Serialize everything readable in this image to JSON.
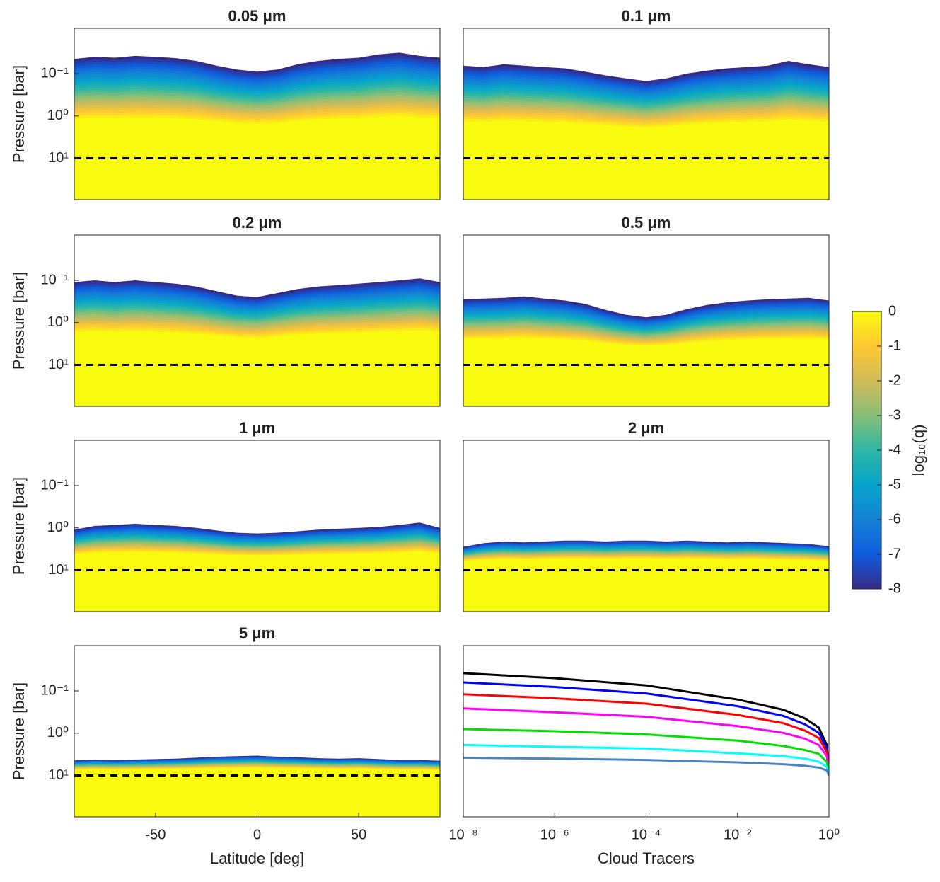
{
  "chart_data": [
    {
      "type": "heatmap",
      "title": "0.05 μm",
      "ylabel": "Pressure [bar]",
      "x": [
        -90,
        -80,
        -70,
        -60,
        -50,
        -40,
        -30,
        -20,
        -10,
        0,
        10,
        20,
        30,
        40,
        50,
        60,
        70,
        80,
        90
      ],
      "cloud_top": [
        0.045,
        0.04,
        0.042,
        0.038,
        0.04,
        0.043,
        0.05,
        0.065,
        0.08,
        0.09,
        0.08,
        0.06,
        0.05,
        0.045,
        0.042,
        0.035,
        0.032,
        0.038,
        0.042
      ],
      "xlim": [
        -90,
        90
      ],
      "ylim": [
        0.0085,
        95
      ],
      "log_y": true,
      "y_reversed": true,
      "reference_line": 10,
      "yticks": [
        {
          "value": 0.1,
          "label": "10⁻¹"
        },
        {
          "value": 1,
          "label": "10⁰"
        },
        {
          "value": 10,
          "label": "10¹"
        }
      ]
    },
    {
      "type": "heatmap",
      "title": "0.1 μm",
      "x": [
        -90,
        -80,
        -70,
        -60,
        -50,
        -40,
        -30,
        -20,
        -10,
        0,
        10,
        20,
        30,
        40,
        50,
        60,
        70,
        80,
        90
      ],
      "cloud_top": [
        0.065,
        0.07,
        0.06,
        0.065,
        0.07,
        0.075,
        0.09,
        0.11,
        0.13,
        0.15,
        0.13,
        0.1,
        0.085,
        0.075,
        0.07,
        0.065,
        0.05,
        0.06,
        0.07
      ],
      "xlim": [
        -90,
        90
      ],
      "ylim": [
        0.0085,
        95
      ],
      "log_y": true,
      "y_reversed": true,
      "reference_line": 10
    },
    {
      "type": "heatmap",
      "title": "0.2 μm",
      "ylabel": "Pressure [bar]",
      "x": [
        -90,
        -80,
        -70,
        -60,
        -50,
        -40,
        -30,
        -20,
        -10,
        0,
        10,
        20,
        30,
        40,
        50,
        60,
        70,
        80,
        90
      ],
      "cloud_top": [
        0.11,
        0.1,
        0.11,
        0.1,
        0.11,
        0.12,
        0.14,
        0.18,
        0.23,
        0.25,
        0.2,
        0.16,
        0.14,
        0.13,
        0.12,
        0.11,
        0.1,
        0.09,
        0.11
      ],
      "xlim": [
        -90,
        90
      ],
      "ylim": [
        0.0085,
        95
      ],
      "log_y": true,
      "y_reversed": true,
      "reference_line": 10,
      "yticks": [
        {
          "value": 0.1,
          "label": "10⁻¹"
        },
        {
          "value": 1,
          "label": "10⁰"
        },
        {
          "value": 10,
          "label": "10¹"
        }
      ]
    },
    {
      "type": "heatmap",
      "title": "0.5 μm",
      "x": [
        -90,
        -80,
        -70,
        -60,
        -50,
        -40,
        -30,
        -20,
        -10,
        0,
        10,
        20,
        30,
        40,
        50,
        60,
        70,
        80,
        90
      ],
      "cloud_top": [
        0.28,
        0.27,
        0.26,
        0.24,
        0.27,
        0.3,
        0.36,
        0.5,
        0.65,
        0.75,
        0.65,
        0.48,
        0.38,
        0.33,
        0.3,
        0.28,
        0.27,
        0.26,
        0.3
      ],
      "xlim": [
        -90,
        90
      ],
      "ylim": [
        0.0085,
        95
      ],
      "log_y": true,
      "y_reversed": true,
      "reference_line": 10
    },
    {
      "type": "heatmap",
      "title": "1 μm",
      "ylabel": "Pressure [bar]",
      "x": [
        -90,
        -80,
        -70,
        -60,
        -50,
        -40,
        -30,
        -20,
        -10,
        0,
        10,
        20,
        30,
        40,
        50,
        60,
        70,
        80,
        90
      ],
      "cloud_top": [
        1.1,
        0.9,
        0.85,
        0.8,
        0.85,
        0.9,
        1.0,
        1.15,
        1.3,
        1.35,
        1.3,
        1.2,
        1.1,
        1.05,
        1.0,
        0.95,
        0.85,
        0.75,
        1.0
      ],
      "xlim": [
        -90,
        90
      ],
      "ylim": [
        0.0085,
        95
      ],
      "log_y": true,
      "y_reversed": true,
      "reference_line": 10,
      "yticks": [
        {
          "value": 0.1,
          "label": "10⁻¹"
        },
        {
          "value": 1,
          "label": "10⁰"
        },
        {
          "value": 10,
          "label": "10¹"
        }
      ]
    },
    {
      "type": "heatmap",
      "title": "2 μm",
      "x": [
        -90,
        -80,
        -70,
        -60,
        -50,
        -40,
        -30,
        -20,
        -10,
        0,
        10,
        20,
        30,
        40,
        50,
        60,
        70,
        80,
        90
      ],
      "cloud_top": [
        2.8,
        2.3,
        2.1,
        2.2,
        2.1,
        2.0,
        2.0,
        2.1,
        2.0,
        2.0,
        2.1,
        2.0,
        2.1,
        2.2,
        2.1,
        2.2,
        2.3,
        2.4,
        2.7
      ],
      "xlim": [
        -90,
        90
      ],
      "ylim": [
        0.0085,
        95
      ],
      "log_y": true,
      "y_reversed": true,
      "reference_line": 10
    },
    {
      "type": "heatmap",
      "title": "5 μm",
      "ylabel": "Pressure [bar]",
      "xlabel": "Latitude [deg]",
      "x": [
        -90,
        -80,
        -70,
        -60,
        -50,
        -40,
        -30,
        -20,
        -10,
        0,
        10,
        20,
        30,
        40,
        50,
        60,
        70,
        80,
        90
      ],
      "cloud_top": [
        4.4,
        4.2,
        4.3,
        4.2,
        4.1,
        4.0,
        3.8,
        3.6,
        3.5,
        3.4,
        3.6,
        3.7,
        3.9,
        4.0,
        3.9,
        4.1,
        4.3,
        4.3,
        4.5
      ],
      "xlim": [
        -90,
        90
      ],
      "ylim": [
        0.0085,
        95
      ],
      "log_y": true,
      "y_reversed": true,
      "reference_line": 10,
      "xticks": [
        -50,
        0,
        50
      ],
      "yticks": [
        {
          "value": 0.1,
          "label": "10⁻¹"
        },
        {
          "value": 1,
          "label": "10⁰"
        },
        {
          "value": 10,
          "label": "10¹"
        }
      ]
    },
    {
      "type": "line",
      "xlabel": "Cloud Tracers",
      "x": [
        1e-08,
        1e-06,
        0.0001,
        0.01,
        0.1,
        0.3,
        0.6,
        0.9,
        1
      ],
      "xlim": [
        1e-08,
        1
      ],
      "ylim": [
        0.0085,
        95
      ],
      "log_x": true,
      "log_y": true,
      "y_reversed": true,
      "xticks": [
        {
          "value": 1e-08,
          "label": "10⁻⁸"
        },
        {
          "value": 1e-06,
          "label": "10⁻⁶"
        },
        {
          "value": 0.0001,
          "label": "10⁻⁴"
        },
        {
          "value": 0.01,
          "label": "10⁻²"
        },
        {
          "value": 1,
          "label": "10⁰"
        }
      ],
      "series": [
        {
          "color": "#000000",
          "values": [
            0.038,
            0.05,
            0.074,
            0.16,
            0.28,
            0.45,
            0.74,
            1.9,
            10
          ]
        },
        {
          "color": "#0000ff",
          "values": [
            0.063,
            0.081,
            0.115,
            0.23,
            0.39,
            0.62,
            0.98,
            2.3,
            10
          ]
        },
        {
          "color": "#ff0000",
          "values": [
            0.12,
            0.15,
            0.2,
            0.37,
            0.58,
            0.87,
            1.3,
            2.8,
            10
          ]
        },
        {
          "color": "#ff00ff",
          "values": [
            0.26,
            0.32,
            0.41,
            0.68,
            0.98,
            1.35,
            1.9,
            3.5,
            10
          ]
        },
        {
          "color": "#00e000",
          "values": [
            0.8,
            0.9,
            1.07,
            1.5,
            2.0,
            2.5,
            3.1,
            4.8,
            10
          ]
        },
        {
          "color": "#00ffff",
          "values": [
            1.9,
            2.1,
            2.3,
            3.0,
            3.5,
            4.0,
            4.7,
            6.2,
            10
          ]
        },
        {
          "color": "#4a84c6",
          "values": [
            3.8,
            4.0,
            4.3,
            4.9,
            5.4,
            5.9,
            6.5,
            7.6,
            10
          ]
        }
      ]
    },
    {
      "type": "colorbar",
      "label": "log₁₀(q)",
      "ylim": [
        -8,
        0
      ],
      "yticks": [
        0,
        -1,
        -2,
        -3,
        -4,
        -5,
        -6,
        -7,
        -8
      ],
      "colormap": [
        "#352a87",
        "#0f5cdd",
        "#1481d6",
        "#06a4ca",
        "#2eb7a4",
        "#87bf77",
        "#d1bb59",
        "#fec832",
        "#f9fb0e"
      ]
    }
  ]
}
